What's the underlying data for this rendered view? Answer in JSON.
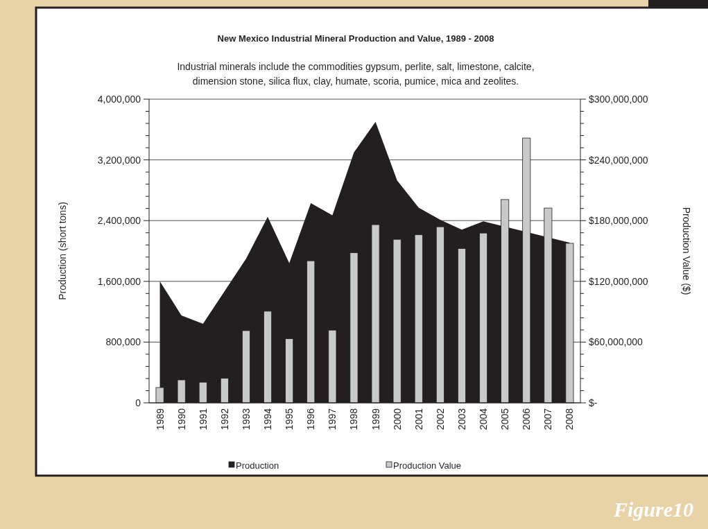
{
  "chart_data": {
    "type": "area",
    "title": "New Mexico Industrial Mineral Production and Value, 1989 - 2008",
    "subtitle": "Industrial minerals include the commodities gypsum, perlite, salt, limestone, calcite, dimension stone, silica flux, clay, humate, scoria, pumice, mica and zeolites.",
    "ylabel": "Production (short tons)",
    "y2label": "Production Value ($)",
    "categories": [
      "1989",
      "1990",
      "1991",
      "1992",
      "1993",
      "1994",
      "1995",
      "1996",
      "1997",
      "1998",
      "1999",
      "2000",
      "2001",
      "2002",
      "2003",
      "2004",
      "2005",
      "2006",
      "2007",
      "2008"
    ],
    "series": [
      {
        "name": "Production",
        "color": "#231f20",
        "values": [
          1600000,
          1150000,
          1040000,
          1470000,
          1900000,
          2450000,
          1840000,
          2630000,
          2470000,
          3300000,
          3700000,
          2930000,
          2570000,
          2410000,
          2280000,
          2390000,
          null,
          null,
          null,
          2110000
        ]
      },
      {
        "name": "Production Value",
        "type": "bar",
        "axis": "y2",
        "color": "#c8c9cb",
        "values": [
          15100000,
          22600000,
          20400000,
          24200000,
          71300000,
          90500000,
          63300000,
          140300000,
          71800000,
          148300000,
          176000000,
          161500000,
          166000000,
          173900000,
          152400000,
          167700000,
          200800000,
          261600000,
          192400000,
          157600000
        ]
      }
    ],
    "ylim": [
      0,
      4000000
    ],
    "yticks": [
      {
        "value": 0,
        "label": "0"
      },
      {
        "value": 160000,
        "label": null
      },
      {
        "value": 320000,
        "label": null
      },
      {
        "value": 480000,
        "label": null
      },
      {
        "value": 640000,
        "label": null
      },
      {
        "value": 800000,
        "label": "800,000"
      },
      {
        "value": 960000,
        "label": null
      },
      {
        "value": 1120000,
        "label": null
      },
      {
        "value": 1280000,
        "label": null
      },
      {
        "value": 1440000,
        "label": null
      },
      {
        "value": 1600000,
        "label": "1,600,000"
      },
      {
        "value": 1760000,
        "label": null
      },
      {
        "value": 1920000,
        "label": null
      },
      {
        "value": 2080000,
        "label": null
      },
      {
        "value": 2240000,
        "label": null
      },
      {
        "value": 2400000,
        "label": "2,400,000"
      },
      {
        "value": 2560000,
        "label": null
      },
      {
        "value": 2720000,
        "label": null
      },
      {
        "value": 2880000,
        "label": null
      },
      {
        "value": 3040000,
        "label": null
      },
      {
        "value": 3200000,
        "label": "3,200,000"
      },
      {
        "value": 3360000,
        "label": null
      },
      {
        "value": 3520000,
        "label": null
      },
      {
        "value": 3680000,
        "label": null
      },
      {
        "value": 3840000,
        "label": null
      },
      {
        "value": 4000000,
        "label": "4,000,000"
      }
    ],
    "y2lim": [
      0,
      300000000
    ],
    "y2ticks": [
      {
        "value": 0,
        "label": "$-"
      },
      {
        "value": 12000000,
        "label": null
      },
      {
        "value": 24000000,
        "label": null
      },
      {
        "value": 36000000,
        "label": null
      },
      {
        "value": 48000000,
        "label": null
      },
      {
        "value": 60000000,
        "label": "$60,000,000"
      },
      {
        "value": 72000000,
        "label": null
      },
      {
        "value": 84000000,
        "label": null
      },
      {
        "value": 96000000,
        "label": null
      },
      {
        "value": 108000000,
        "label": null
      },
      {
        "value": 120000000,
        "label": "$120,000,000"
      },
      {
        "value": 132000000,
        "label": null
      },
      {
        "value": 144000000,
        "label": null
      },
      {
        "value": 156000000,
        "label": null
      },
      {
        "value": 168000000,
        "label": null
      },
      {
        "value": 180000000,
        "label": "$180,000,000"
      },
      {
        "value": 192000000,
        "label": null
      },
      {
        "value": 204000000,
        "label": null
      },
      {
        "value": 216000000,
        "label": null
      },
      {
        "value": 228000000,
        "label": null
      },
      {
        "value": 240000000,
        "label": "$240,000,000"
      },
      {
        "value": 252000000,
        "label": null
      },
      {
        "value": 264000000,
        "label": null
      },
      {
        "value": 276000000,
        "label": null
      },
      {
        "value": 288000000,
        "label": null
      },
      {
        "value": 300000000,
        "label": "$300,000,000"
      }
    ],
    "grid": "y",
    "legend": "bottom",
    "annotations": [
      "Figure10"
    ]
  }
}
